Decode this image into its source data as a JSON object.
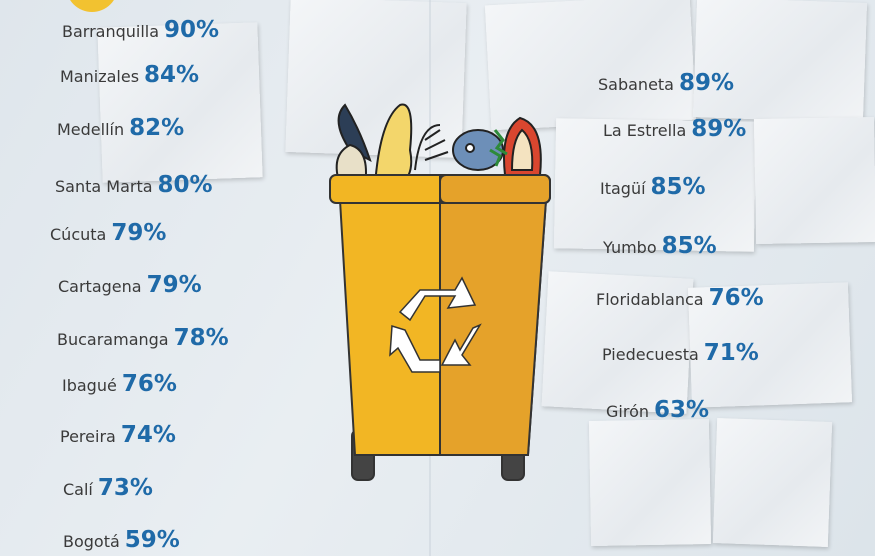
{
  "left": [
    {
      "city": "Barranquilla",
      "value": "90%"
    },
    {
      "city": "Manizales",
      "value": "84%"
    },
    {
      "city": "Medellín",
      "value": "82%"
    },
    {
      "city": "Santa Marta",
      "value": "80%"
    },
    {
      "city": "Cúcuta",
      "value": "79%"
    },
    {
      "city": "Cartagena",
      "value": "79%"
    },
    {
      "city": "Bucaramanga",
      "value": "78%"
    },
    {
      "city": "Ibagué",
      "value": "76%"
    },
    {
      "city": "Pereira",
      "value": "74%"
    },
    {
      "city": "Calí",
      "value": "73%"
    },
    {
      "city": "Bogotá",
      "value": "59%"
    }
  ],
  "right": [
    {
      "city": "Sabaneta",
      "value": "89%"
    },
    {
      "city": "La Estrella",
      "value": "89%"
    },
    {
      "city": "Itagüí",
      "value": "85%"
    },
    {
      "city": "Yumbo",
      "value": "85%"
    },
    {
      "city": "Floridablanca",
      "value": "76%"
    },
    {
      "city": "Piedecuesta",
      "value": "71%"
    },
    {
      "city": "Girón",
      "value": "63%"
    }
  ]
}
